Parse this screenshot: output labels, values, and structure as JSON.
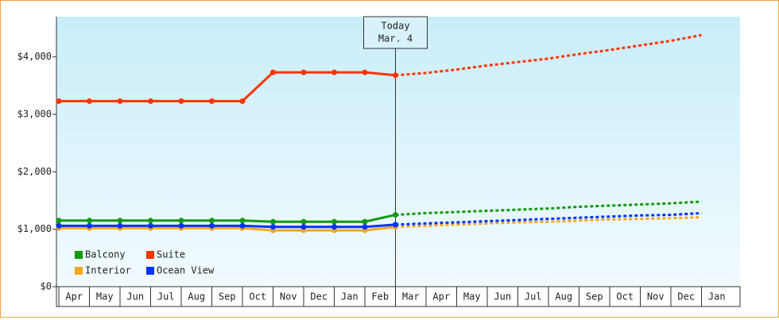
{
  "chart_data": {
    "type": "line",
    "categories": [
      "Apr",
      "May",
      "Jun",
      "Jul",
      "Aug",
      "Sep",
      "Oct",
      "Nov",
      "Dec",
      "Jan",
      "Feb",
      "Mar",
      "Apr",
      "May",
      "Jun",
      "Jul",
      "Aug",
      "Sep",
      "Oct",
      "Nov",
      "Dec",
      "Jan"
    ],
    "series": [
      {
        "name": "Balcony",
        "color": "#119911",
        "values": [
          1150,
          1150,
          1150,
          1150,
          1150,
          1150,
          1150,
          1130,
          1130,
          1130,
          1130,
          1250,
          null,
          null,
          null,
          null,
          null,
          null,
          null,
          null,
          null,
          null
        ],
        "forecast_values": [
          null,
          null,
          null,
          null,
          null,
          null,
          null,
          null,
          null,
          null,
          null,
          1250,
          1280,
          1300,
          1320,
          1340,
          1360,
          1390,
          1410,
          1430,
          1450,
          1480
        ]
      },
      {
        "name": "Suite",
        "color": "#ff3300",
        "values": [
          3230,
          3230,
          3230,
          3230,
          3230,
          3230,
          3230,
          3730,
          3730,
          3730,
          3730,
          3680,
          null,
          null,
          null,
          null,
          null,
          null,
          null,
          null,
          null,
          null
        ],
        "forecast_values": [
          null,
          null,
          null,
          null,
          null,
          null,
          null,
          null,
          null,
          null,
          null,
          3680,
          3720,
          3780,
          3850,
          3910,
          3970,
          4050,
          4120,
          4200,
          4280,
          4380
        ]
      },
      {
        "name": "Interior",
        "color": "#f5a623",
        "values": [
          1020,
          1020,
          1020,
          1020,
          1020,
          1020,
          1020,
          980,
          980,
          980,
          980,
          1040,
          null,
          null,
          null,
          null,
          null,
          null,
          null,
          null,
          null,
          null
        ],
        "forecast_values": [
          null,
          null,
          null,
          null,
          null,
          null,
          null,
          null,
          null,
          null,
          null,
          1040,
          1060,
          1080,
          1100,
          1120,
          1130,
          1150,
          1170,
          1180,
          1190,
          1210
        ]
      },
      {
        "name": "Ocean View",
        "color": "#0033ff",
        "values": [
          1060,
          1060,
          1060,
          1060,
          1060,
          1060,
          1060,
          1040,
          1040,
          1040,
          1040,
          1080,
          null,
          null,
          null,
          null,
          null,
          null,
          null,
          null,
          null,
          null
        ],
        "forecast_values": [
          null,
          null,
          null,
          null,
          null,
          null,
          null,
          null,
          null,
          null,
          null,
          1080,
          1100,
          1120,
          1140,
          1160,
          1180,
          1200,
          1220,
          1240,
          1250,
          1280
        ]
      }
    ],
    "annotation": [
      "Today",
      "Mar. 4"
    ],
    "ylim": [
      0,
      4700
    ],
    "yticks": [
      {
        "value": 0,
        "label": "$0"
      },
      {
        "value": 1000,
        "label": "$1,000"
      },
      {
        "value": 2000,
        "label": "$2,000"
      },
      {
        "value": 3000,
        "label": "$3,000"
      },
      {
        "value": 4000,
        "label": "$4,000"
      }
    ],
    "legend": "bottom-left"
  }
}
